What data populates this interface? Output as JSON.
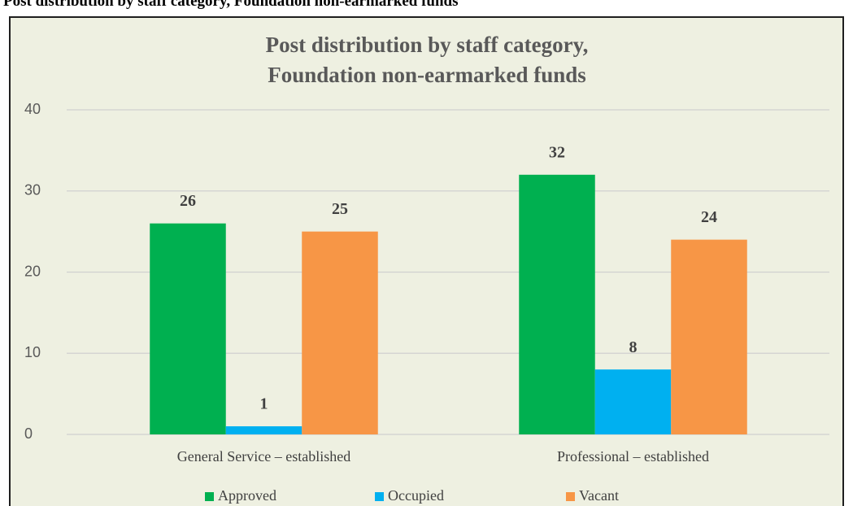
{
  "heading": "Post distribution by staff category, Foundation non-earmarked funds",
  "chart_data": {
    "type": "bar",
    "title": [
      "Post distribution by staff category,",
      "Foundation non-earmarked funds"
    ],
    "categories": [
      "General Service – established",
      "Professional – established"
    ],
    "series": [
      {
        "name": "Approved",
        "color": "#00b050",
        "values": [
          26,
          32
        ]
      },
      {
        "name": "Occupied",
        "color": "#00b0f0",
        "values": [
          1,
          8
        ]
      },
      {
        "name": "Vacant",
        "color": "#f79646",
        "values": [
          25,
          24
        ]
      }
    ],
    "ylim": [
      0,
      40
    ],
    "yticks": [
      0,
      10,
      20,
      30,
      40
    ],
    "grid": true,
    "legend": "bottom"
  }
}
